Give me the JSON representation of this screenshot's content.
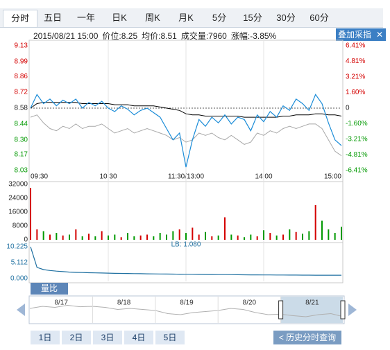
{
  "tabs": [
    "分时",
    "五日",
    "一年",
    "日K",
    "周K",
    "月K",
    "5分",
    "15分",
    "30分",
    "60分"
  ],
  "info": {
    "datetime": "2015/08/21 15:00",
    "price": "价位:8.25",
    "average": "均价:8.51",
    "volume": "成交量:7960",
    "change": "涨幅:-3.85%"
  },
  "overlay_button": "叠加采指",
  "chart_data": [
    {
      "type": "line",
      "x": [
        0,
        5,
        10,
        15,
        20,
        25,
        30,
        35,
        40,
        45,
        50,
        55,
        60,
        65,
        70,
        75,
        80,
        85,
        90,
        95,
        100,
        105,
        110,
        115,
        120,
        125,
        130,
        135,
        140,
        145,
        150,
        155,
        160,
        165,
        170,
        175,
        180,
        185,
        190,
        195,
        200,
        205,
        210,
        215,
        220,
        225,
        230,
        235,
        240
      ],
      "series": [
        {
          "color": "#1a8cd8",
          "values": [
            8.58,
            8.7,
            8.62,
            8.66,
            8.6,
            8.65,
            8.62,
            8.66,
            8.58,
            8.63,
            8.6,
            8.64,
            8.58,
            8.55,
            8.6,
            8.57,
            8.52,
            8.56,
            8.58,
            8.54,
            8.5,
            8.4,
            8.3,
            8.36,
            8.06,
            8.3,
            8.48,
            8.42,
            8.5,
            8.45,
            8.52,
            8.44,
            8.5,
            8.48,
            8.38,
            8.52,
            8.46,
            8.55,
            8.5,
            8.6,
            8.56,
            8.66,
            8.62,
            8.56,
            8.7,
            8.62,
            8.45,
            8.3,
            8.25
          ]
        },
        {
          "color": "#000000",
          "values": [
            8.58,
            8.62,
            8.63,
            8.63,
            8.63,
            8.63,
            8.63,
            8.63,
            8.62,
            8.62,
            8.62,
            8.62,
            8.62,
            8.61,
            8.61,
            8.61,
            8.6,
            8.6,
            8.6,
            8.6,
            8.59,
            8.58,
            8.57,
            8.56,
            8.53,
            8.52,
            8.52,
            8.51,
            8.51,
            8.51,
            8.51,
            8.51,
            8.51,
            8.5,
            8.5,
            8.5,
            8.5,
            8.5,
            8.5,
            8.51,
            8.51,
            8.52,
            8.52,
            8.52,
            8.53,
            8.53,
            8.52,
            8.52,
            8.51
          ]
        },
        {
          "color": "#a8a8a8",
          "values": [
            8.5,
            8.52,
            8.45,
            8.4,
            8.38,
            8.42,
            8.4,
            8.44,
            8.4,
            8.42,
            8.42,
            8.44,
            8.4,
            8.36,
            8.38,
            8.4,
            8.36,
            8.38,
            8.4,
            8.38,
            8.36,
            8.34,
            8.3,
            8.32,
            8.28,
            8.3,
            8.36,
            8.34,
            8.36,
            8.32,
            8.3,
            8.34,
            8.3,
            8.26,
            8.28,
            8.36,
            8.34,
            8.38,
            8.36,
            8.4,
            8.42,
            8.4,
            8.42,
            8.44,
            8.44,
            8.4,
            8.3,
            8.2,
            8.16
          ]
        }
      ],
      "xlim": [
        0,
        240
      ],
      "xticks": [
        {
          "value": 0,
          "label": "09:30"
        },
        {
          "value": 60,
          "label": "10:30"
        },
        {
          "value": 120,
          "label": "11:30/13:00"
        },
        {
          "value": 180,
          "label": "14:00"
        },
        {
          "value": 240,
          "label": "15:00"
        }
      ],
      "ylim": [
        8.03,
        9.13
      ],
      "yticks": [
        9.13,
        8.99,
        8.86,
        8.72,
        8.58,
        8.44,
        {
          "value": 8.3,
          "label": "8.30"
        },
        8.17,
        8.03
      ],
      "y2lim": [
        -6.41,
        6.41
      ],
      "y2ticks": [
        {
          "value": 6.41,
          "label": "6.41%"
        },
        {
          "value": 4.81,
          "label": "4.81%"
        },
        {
          "value": 3.21,
          "label": "3.21%"
        },
        {
          "value": 1.6,
          "label": "1.60%"
        },
        0,
        {
          "value": -1.6,
          "label": "-1.60%"
        },
        {
          "value": -3.21,
          "label": "-3.21%"
        },
        {
          "value": -4.81,
          "label": "-4.81%"
        },
        {
          "value": -6.41,
          "label": "-6.41%"
        }
      ],
      "up_color": "#d40000",
      "down_color": "#009900"
    },
    {
      "type": "bar",
      "values": [
        30000,
        6000,
        5000,
        3000,
        4000,
        2500,
        3000,
        6000,
        2000,
        3500,
        2000,
        5000,
        2500,
        3000,
        1500,
        4000,
        2000,
        2500,
        3000,
        2000,
        4000,
        3000,
        5000,
        6000,
        4000,
        7000,
        3000,
        4500,
        2000,
        2500,
        13000,
        3000,
        2500,
        1500,
        3000,
        2000,
        5500,
        4000,
        2500,
        3000,
        6000,
        4500,
        3500,
        5000,
        20000,
        11000,
        6000,
        4000,
        7500
      ],
      "ylim": [
        0,
        32000
      ],
      "yticks": [
        32000,
        24000,
        16000,
        8000,
        0
      ],
      "up_color": "#d40000",
      "down_color": "#009900"
    },
    {
      "type": "line",
      "tab": "量比",
      "annotation": "LB: 1.080",
      "color": "#1d6fa0",
      "values": [
        10.2,
        3.6,
        2.9,
        2.6,
        2.4,
        2.25,
        2.1,
        2.0,
        1.95,
        1.9,
        1.85,
        1.8,
        1.75,
        1.7,
        1.67,
        1.64,
        1.6,
        1.57,
        1.54,
        1.51,
        1.48,
        1.46,
        1.44,
        1.42,
        1.4,
        1.38,
        1.36,
        1.34,
        1.32,
        1.3,
        1.28,
        1.26,
        1.24,
        1.22,
        1.2,
        1.19,
        1.18,
        1.17,
        1.16,
        1.15,
        1.14,
        1.13,
        1.12,
        1.11,
        1.1,
        1.1,
        1.09,
        1.09,
        1.08
      ],
      "ylim": [
        0,
        10.225
      ],
      "yticks": [
        10.225,
        5.112,
        {
          "value": 0,
          "label": "0.000"
        }
      ]
    },
    {
      "type": "area",
      "color": "#b0b0b0",
      "x": [
        0,
        1,
        2,
        3,
        4,
        5,
        6,
        7,
        8,
        9,
        10,
        11,
        12,
        13,
        14,
        15,
        16,
        17,
        18,
        19,
        20,
        21,
        22,
        23,
        24,
        25
      ],
      "values": [
        8.9,
        9.0,
        8.95,
        9.05,
        8.98,
        9.0,
        8.95,
        8.85,
        8.9,
        8.85,
        8.8,
        8.65,
        8.6,
        8.7,
        8.75,
        8.8,
        8.9,
        8.85,
        8.7,
        8.6,
        8.62,
        8.55,
        8.5,
        8.6,
        8.65,
        8.5
      ],
      "xlim": [
        0,
        25
      ],
      "ylim": [
        8.2,
        9.4
      ],
      "xticks": [
        {
          "value": 2.5,
          "label": "8/17"
        },
        {
          "value": 7.5,
          "label": "8/18"
        },
        {
          "value": 12.5,
          "label": "8/19"
        },
        {
          "value": 17.5,
          "label": "8/20"
        },
        {
          "value": 22.5,
          "label": "8/21"
        }
      ]
    }
  ],
  "day_buttons": [
    "1日",
    "2日",
    "3日",
    "4日",
    "5日"
  ],
  "history_button": "< 历史分时查询"
}
